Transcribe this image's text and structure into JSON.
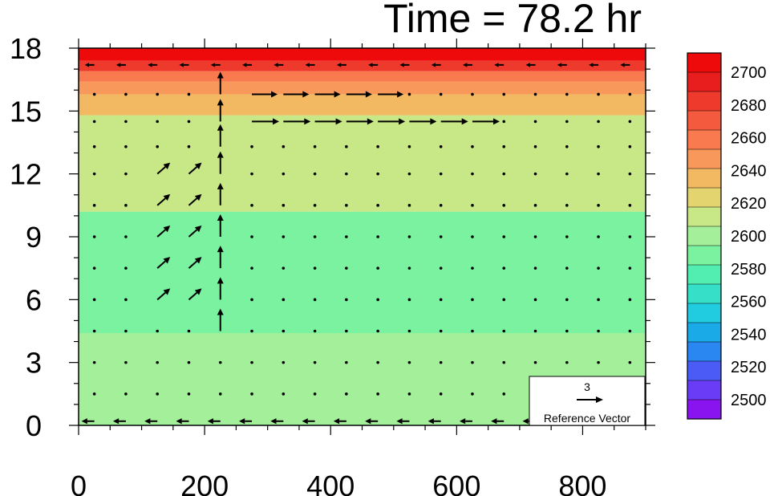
{
  "chart_data": {
    "type": "heatmap",
    "overlay": "vector",
    "title": "Time = 78.2 hr",
    "x_ticks": [
      0,
      200,
      400,
      600,
      800
    ],
    "y_ticks": [
      0,
      3,
      6,
      9,
      12,
      15,
      18
    ],
    "xlim": [
      0,
      900
    ],
    "ylim": [
      0,
      18
    ],
    "colorbar": {
      "labels": [
        2500,
        2520,
        2540,
        2560,
        2580,
        2600,
        2620,
        2640,
        2660,
        2680,
        2700
      ],
      "colors": [
        "#8a14f0",
        "#6a3cf5",
        "#4a5cf5",
        "#2a86f0",
        "#1aaae8",
        "#22cce0",
        "#35dfc8",
        "#52edb0",
        "#7af2a0",
        "#a4f09a",
        "#c8e888",
        "#e4d470",
        "#f2b862",
        "#f8985a",
        "#f87a4e",
        "#f45a3e",
        "#ee3a2c",
        "#e81e1e",
        "#ee0a0a"
      ]
    },
    "reference_vector": {
      "value": "3",
      "label": "Reference Vector"
    },
    "field_layers": [
      {
        "value": 2590,
        "y_max": 10.2
      },
      {
        "value": 2600,
        "y_max": 4.4
      },
      {
        "value": 2610,
        "y_max": 1.6
      },
      {
        "value": 2620,
        "y_min": 10.2,
        "y_max": 14.8
      },
      {
        "value": 2635,
        "y_min": 14.8,
        "y_max": 15.8
      },
      {
        "value": 2650,
        "y_min": 15.8,
        "y_max": 16.4
      },
      {
        "value": 2665,
        "y_min": 16.4,
        "y_max": 16.9
      },
      {
        "value": 2680,
        "y_min": 16.9,
        "y_max": 17.4
      },
      {
        "value": 2700,
        "y_min": 17.4,
        "y_max": 18.0
      }
    ]
  }
}
